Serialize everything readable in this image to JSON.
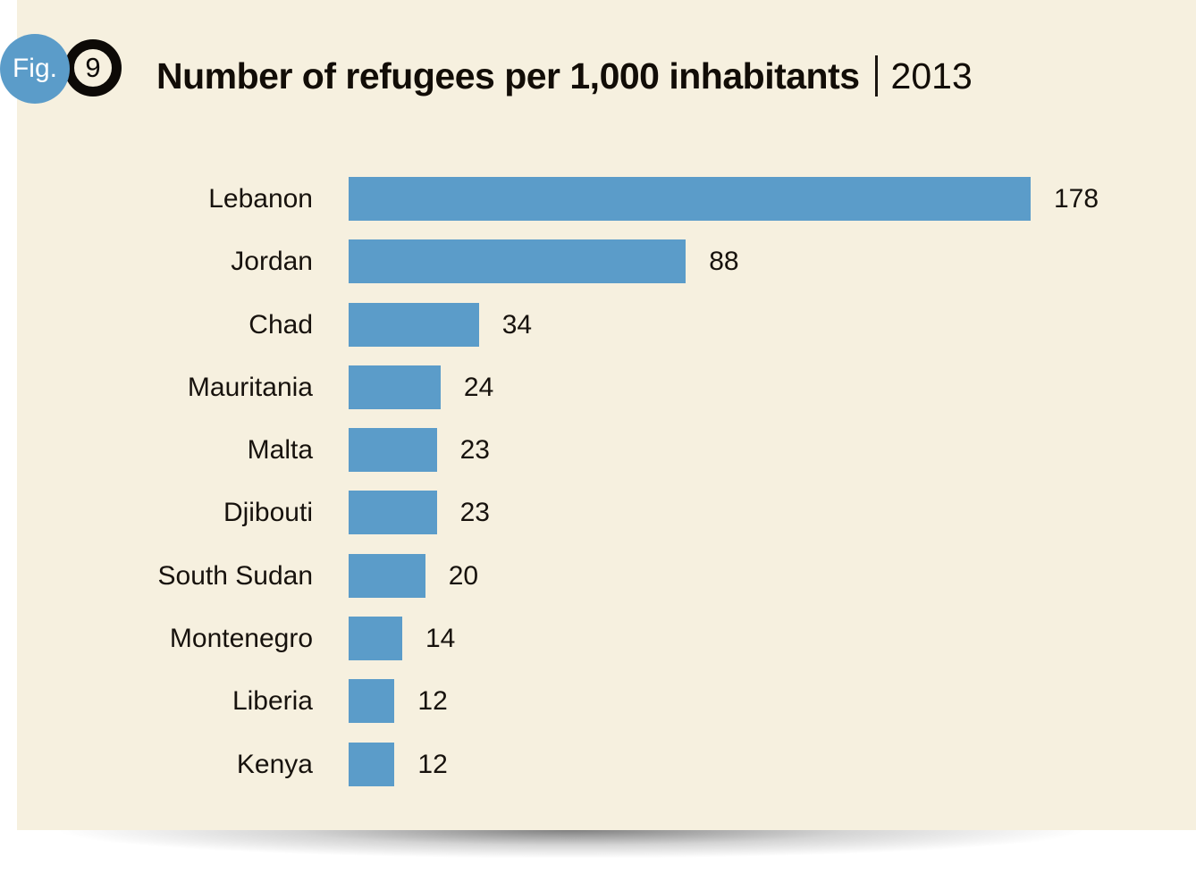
{
  "figure": {
    "label": "Fig.",
    "number": "9"
  },
  "title": {
    "text": "Number of refugees per 1,000 inhabitants",
    "separator": "|",
    "year": "2013"
  },
  "chart_data": {
    "type": "bar",
    "orientation": "horizontal",
    "title": "Number of refugees per 1,000 inhabitants",
    "year": "2013",
    "categories": [
      "Lebanon",
      "Jordan",
      "Chad",
      "Mauritania",
      "Malta",
      "Djibouti",
      "South Sudan",
      "Montenegro",
      "Liberia",
      "Kenya"
    ],
    "values": [
      178,
      88,
      34,
      24,
      23,
      23,
      20,
      14,
      12,
      12
    ],
    "value_labels_shown": true,
    "xlim": [
      0,
      178
    ],
    "grid": false,
    "legend": "none",
    "bar_color": "#5B9CC9",
    "background_color": "#F6F0DF"
  },
  "colors": {
    "accent_blue": "#5B9CC9",
    "card_background": "#F6F0DF",
    "text": "#17120D",
    "badge_ring": "#0D0A07",
    "badge_text": "#FFFFFF"
  }
}
